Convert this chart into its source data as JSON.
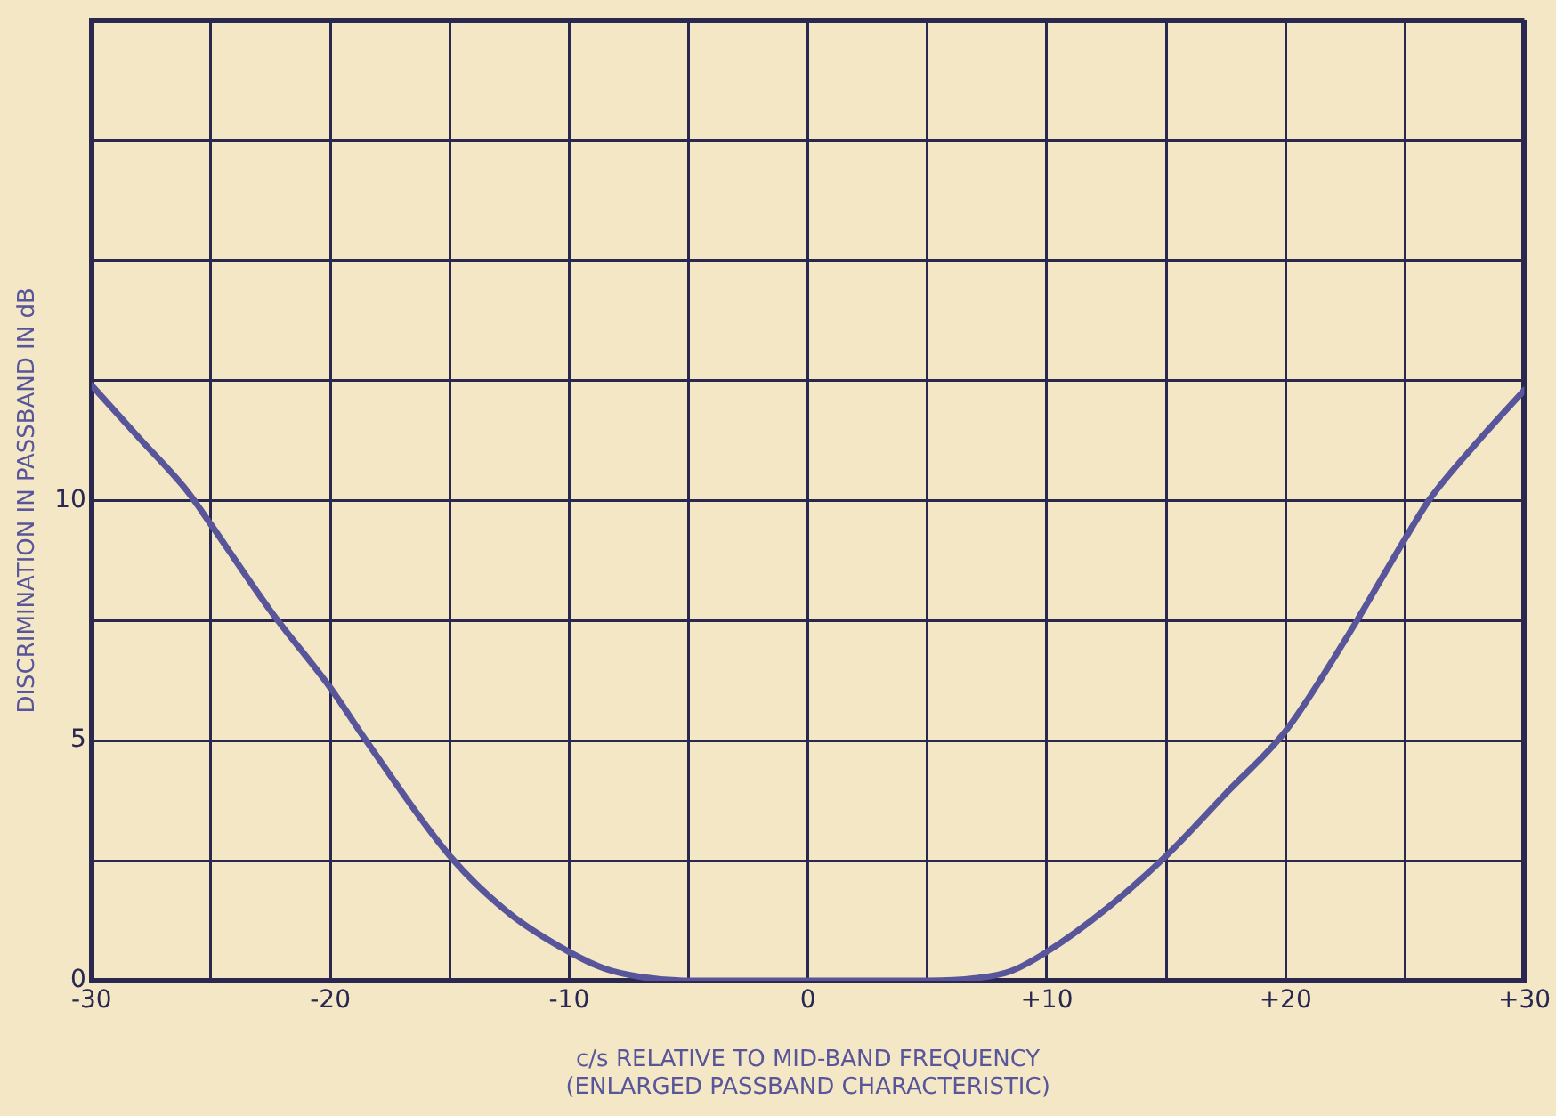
{
  "chart_data": {
    "type": "line",
    "xlabel": "c/s RELATIVE TO MID-BAND FREQUENCY\n(ENLARGED PASSBAND CHARACTERISTIC)",
    "ylabel": "DISCRIMINATION IN PASSBAND IN dB",
    "x": [
      -30,
      -28,
      -26,
      -25,
      -22.5,
      -20,
      -18.5,
      -15,
      -12.5,
      -10,
      -8.5,
      -7,
      -5,
      0,
      5,
      7,
      8.5,
      10,
      12.5,
      15,
      17.5,
      20,
      22.5,
      25,
      26,
      28,
      30
    ],
    "series": [
      {
        "color": "#58559a",
        "values": [
          12.4,
          11.3,
          10.2,
          9.5,
          7.7,
          6.1,
          5,
          2.6,
          1.4,
          0.6,
          0.25,
          0.08,
          0,
          0,
          0,
          0.05,
          0.2,
          0.6,
          1.5,
          2.6,
          3.9,
          5.2,
          7.1,
          9.2,
          10,
          11.2,
          12.3
        ]
      }
    ],
    "xlim": [
      -30,
      30
    ],
    "ylim": [
      0,
      20
    ],
    "xticks": [
      -30,
      {
        "value": -25,
        "label": null
      },
      {
        "value": -20,
        "label": "-20"
      },
      {
        "value": -15,
        "label": null
      },
      {
        "value": -10,
        "label": "-10"
      },
      {
        "value": -5,
        "label": null
      },
      0,
      {
        "value": 5,
        "label": null
      },
      {
        "value": 10,
        "label": "+10"
      },
      {
        "value": 15,
        "label": null
      },
      {
        "value": 20,
        "label": "+20"
      },
      {
        "value": 25,
        "label": null
      },
      {
        "value": 30,
        "label": "+30"
      }
    ],
    "yticks": [
      0,
      {
        "value": 2.5,
        "label": null
      },
      5,
      {
        "value": 7.5,
        "label": null
      },
      10,
      {
        "value": 12.5,
        "label": null
      },
      {
        "value": 15,
        "label": null
      },
      {
        "value": 17.5,
        "label": null
      },
      {
        "value": 20,
        "label": null
      }
    ],
    "grid": true,
    "legend": false,
    "marker": "none",
    "line_style": "solid"
  }
}
